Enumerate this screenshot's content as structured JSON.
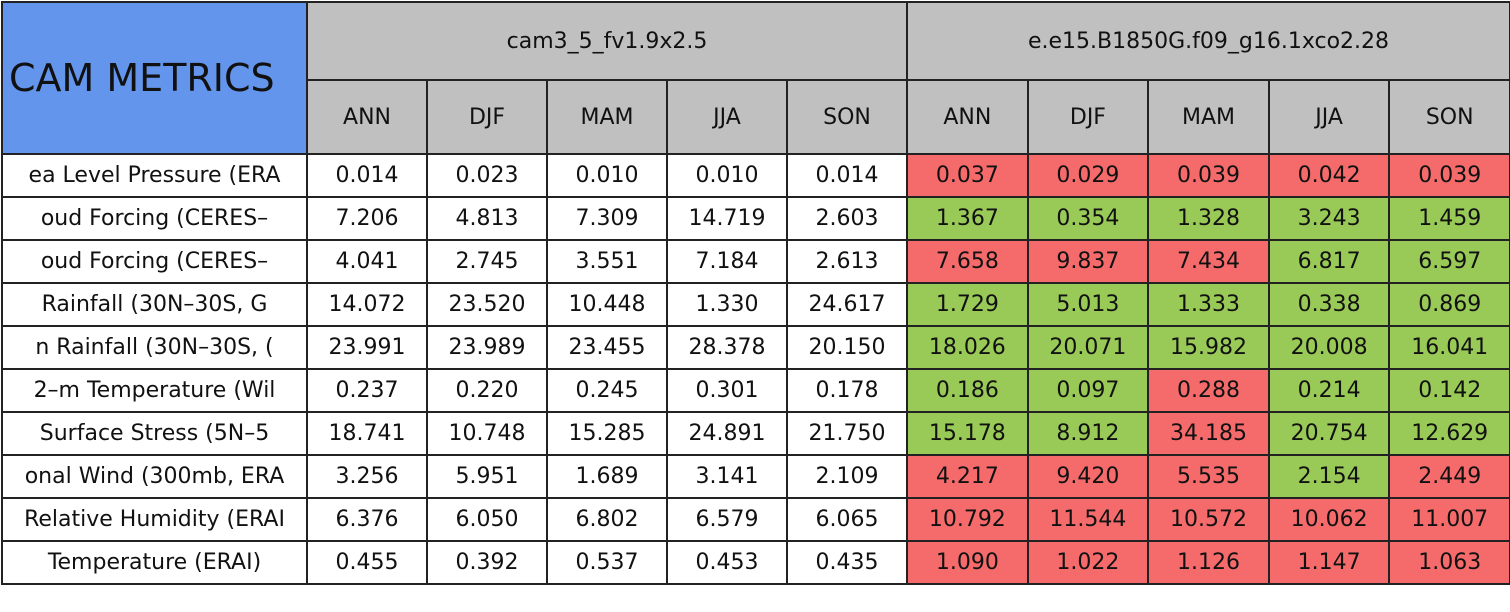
{
  "header": {
    "title": "CAM METRICS",
    "models": [
      "cam3_5_fv1.9x2.5",
      "e.e15.B1850G.f09_g16.1xco2.28"
    ],
    "seasons": [
      [
        "ANN",
        "DJF",
        "MAM",
        "JJA",
        "SON"
      ],
      [
        "ANN",
        "DJF",
        "MAM",
        "JJA",
        "SON"
      ]
    ]
  },
  "table": {
    "rows": [
      {
        "label": "ea Level Pressure (ERA",
        "cells": [
          "0.014",
          "0.023",
          "0.010",
          "0.010",
          "0.014",
          "0.037",
          "0.029",
          "0.039",
          "0.042",
          "0.039"
        ],
        "colors": [
          "#ffffff",
          "#ffffff",
          "#ffffff",
          "#ffffff",
          "#ffffff",
          "#f56b6b",
          "#f56b6b",
          "#f56b6b",
          "#f56b6b",
          "#f56b6b"
        ]
      },
      {
        "label": "oud Forcing (CERES–",
        "cells": [
          "7.206",
          "4.813",
          "7.309",
          "14.719",
          "2.603",
          "1.367",
          "0.354",
          "1.328",
          "3.243",
          "1.459"
        ],
        "colors": [
          "#ffffff",
          "#ffffff",
          "#ffffff",
          "#ffffff",
          "#ffffff",
          "#99c957",
          "#99c957",
          "#99c957",
          "#99c957",
          "#99c957"
        ]
      },
      {
        "label": "oud Forcing (CERES–",
        "cells": [
          "4.041",
          "2.745",
          "3.551",
          "7.184",
          "2.613",
          "7.658",
          "9.837",
          "7.434",
          "6.817",
          "6.597"
        ],
        "colors": [
          "#ffffff",
          "#ffffff",
          "#ffffff",
          "#ffffff",
          "#ffffff",
          "#f56b6b",
          "#f56b6b",
          "#f56b6b",
          "#99c957",
          "#99c957"
        ]
      },
      {
        "label": "Rainfall (30N–30S, G",
        "cells": [
          "14.072",
          "23.520",
          "10.448",
          "1.330",
          "24.617",
          "1.729",
          "5.013",
          "1.333",
          "0.338",
          "0.869"
        ],
        "colors": [
          "#ffffff",
          "#ffffff",
          "#ffffff",
          "#ffffff",
          "#ffffff",
          "#99c957",
          "#99c957",
          "#99c957",
          "#99c957",
          "#99c957"
        ]
      },
      {
        "label": "n Rainfall (30N–30S, (",
        "cells": [
          "23.991",
          "23.989",
          "23.455",
          "28.378",
          "20.150",
          "18.026",
          "20.071",
          "15.982",
          "20.008",
          "16.041"
        ],
        "colors": [
          "#ffffff",
          "#ffffff",
          "#ffffff",
          "#ffffff",
          "#ffffff",
          "#99c957",
          "#99c957",
          "#99c957",
          "#99c957",
          "#99c957"
        ]
      },
      {
        "label": "2–m Temperature (Wil",
        "cells": [
          "0.237",
          "0.220",
          "0.245",
          "0.301",
          "0.178",
          "0.186",
          "0.097",
          "0.288",
          "0.214",
          "0.142"
        ],
        "colors": [
          "#ffffff",
          "#ffffff",
          "#ffffff",
          "#ffffff",
          "#ffffff",
          "#99c957",
          "#99c957",
          "#f56b6b",
          "#99c957",
          "#99c957"
        ]
      },
      {
        "label": "Surface Stress (5N–5",
        "cells": [
          "18.741",
          "10.748",
          "15.285",
          "24.891",
          "21.750",
          "15.178",
          "8.912",
          "34.185",
          "20.754",
          "12.629"
        ],
        "colors": [
          "#ffffff",
          "#ffffff",
          "#ffffff",
          "#ffffff",
          "#ffffff",
          "#99c957",
          "#99c957",
          "#f56b6b",
          "#99c957",
          "#99c957"
        ]
      },
      {
        "label": "onal Wind (300mb, ERA",
        "cells": [
          "3.256",
          "5.951",
          "1.689",
          "3.141",
          "2.109",
          "4.217",
          "9.420",
          "5.535",
          "2.154",
          "2.449"
        ],
        "colors": [
          "#ffffff",
          "#ffffff",
          "#ffffff",
          "#ffffff",
          "#ffffff",
          "#f56b6b",
          "#f56b6b",
          "#f56b6b",
          "#99c957",
          "#f56b6b"
        ]
      },
      {
        "label": "Relative Humidity (ERAI",
        "cells": [
          "6.376",
          "6.050",
          "6.802",
          "6.579",
          "6.065",
          "10.792",
          "11.544",
          "10.572",
          "10.062",
          "11.007"
        ],
        "colors": [
          "#ffffff",
          "#ffffff",
          "#ffffff",
          "#ffffff",
          "#ffffff",
          "#f56b6b",
          "#f56b6b",
          "#f56b6b",
          "#f56b6b",
          "#f56b6b"
        ]
      },
      {
        "label": "Temperature (ERAI)",
        "cells": [
          "0.455",
          "0.392",
          "0.537",
          "0.453",
          "0.435",
          "1.090",
          "1.022",
          "1.126",
          "1.147",
          "1.063"
        ],
        "colors": [
          "#ffffff",
          "#ffffff",
          "#ffffff",
          "#ffffff",
          "#ffffff",
          "#f56b6b",
          "#f56b6b",
          "#f56b6b",
          "#f56b6b",
          "#f56b6b"
        ]
      }
    ]
  }
}
